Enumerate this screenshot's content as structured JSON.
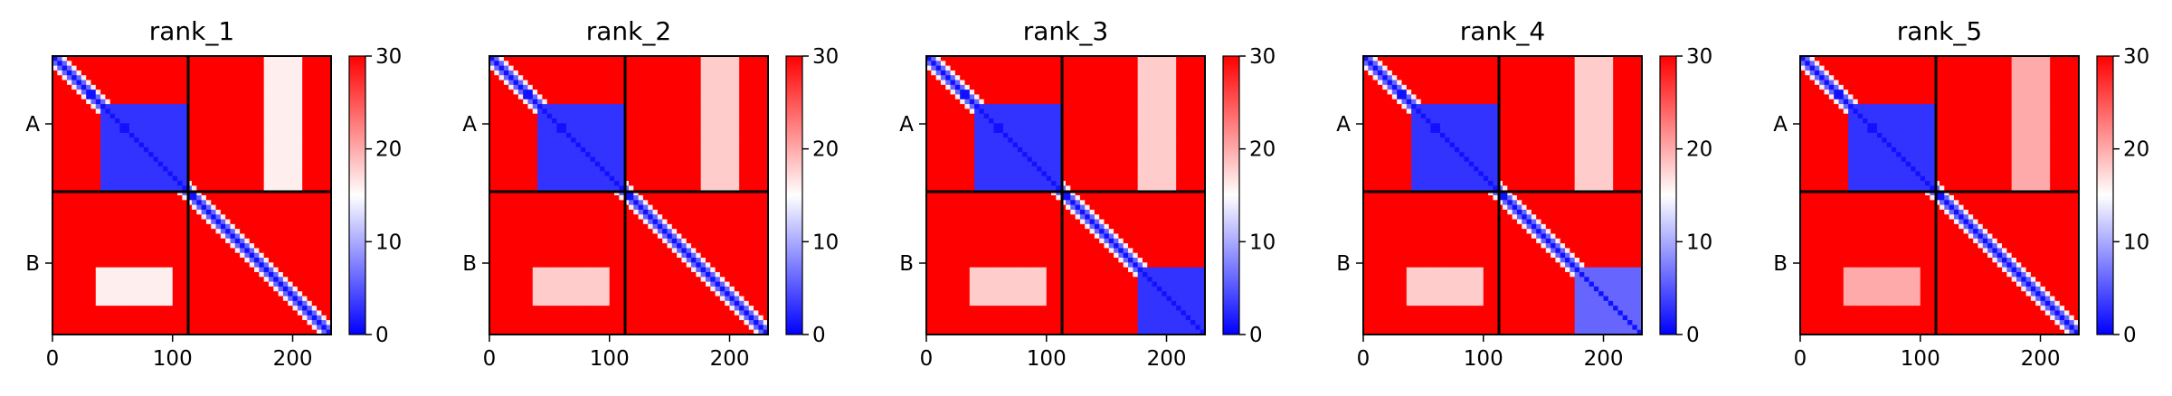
{
  "chart_data": {
    "type": "heatmap",
    "description_type": "predicted aligned error (PAE) matrix per model rank",
    "colormap": {
      "name": "bwr",
      "stops": [
        "#0000ff",
        "#ffffff",
        "#ff0000"
      ],
      "vmin": 0,
      "vmax": 30,
      "ticks": [
        "0",
        "10",
        "20",
        "30"
      ]
    },
    "x_axis": {
      "range": [
        0,
        232
      ],
      "ticks": [
        0,
        100,
        200
      ],
      "tick_labels": [
        "0",
        "100",
        "200"
      ]
    },
    "y_axis": {
      "chain_labels": [
        "A",
        "B"
      ]
    },
    "chain_boundary": 113,
    "total_residues": 232,
    "panels": [
      {
        "title": "rank_1",
        "matrix_low_error_regions": [
          {
            "rows": [
              40,
              113
            ],
            "cols": [
              40,
              113
            ],
            "value": 3
          },
          {
            "rows": [
              0,
              113
            ],
            "cols": [
              178,
              208
            ],
            "value": 16
          },
          {
            "rows": [
              178,
              208
            ],
            "cols": [
              35,
              100
            ],
            "value": 16
          }
        ]
      },
      {
        "title": "rank_2",
        "matrix_low_error_regions": [
          {
            "rows": [
              40,
              113
            ],
            "cols": [
              40,
              113
            ],
            "value": 3
          },
          {
            "rows": [
              0,
              113
            ],
            "cols": [
              178,
              208
            ],
            "value": 18
          },
          {
            "rows": [
              178,
              208
            ],
            "cols": [
              35,
              100
            ],
            "value": 18
          }
        ]
      },
      {
        "title": "rank_3",
        "matrix_low_error_regions": [
          {
            "rows": [
              40,
              113
            ],
            "cols": [
              40,
              113
            ],
            "value": 3
          },
          {
            "rows": [
              178,
              232
            ],
            "cols": [
              178,
              232
            ],
            "value": 3
          },
          {
            "rows": [
              0,
              113
            ],
            "cols": [
              178,
              208
            ],
            "value": 18
          },
          {
            "rows": [
              178,
              208
            ],
            "cols": [
              35,
              100
            ],
            "value": 18
          }
        ]
      },
      {
        "title": "rank_4",
        "matrix_low_error_regions": [
          {
            "rows": [
              40,
              113
            ],
            "cols": [
              40,
              113
            ],
            "value": 3
          },
          {
            "rows": [
              178,
              232
            ],
            "cols": [
              178,
              232
            ],
            "value": 6
          },
          {
            "rows": [
              0,
              113
            ],
            "cols": [
              178,
              208
            ],
            "value": 18
          },
          {
            "rows": [
              178,
              208
            ],
            "cols": [
              35,
              100
            ],
            "value": 18
          }
        ]
      },
      {
        "title": "rank_5",
        "matrix_low_error_regions": [
          {
            "rows": [
              40,
              113
            ],
            "cols": [
              40,
              113
            ],
            "value": 3
          },
          {
            "rows": [
              0,
              113
            ],
            "cols": [
              178,
              208
            ],
            "value": 20
          },
          {
            "rows": [
              178,
              208
            ],
            "cols": [
              35,
              100
            ],
            "value": 20
          }
        ]
      }
    ]
  }
}
